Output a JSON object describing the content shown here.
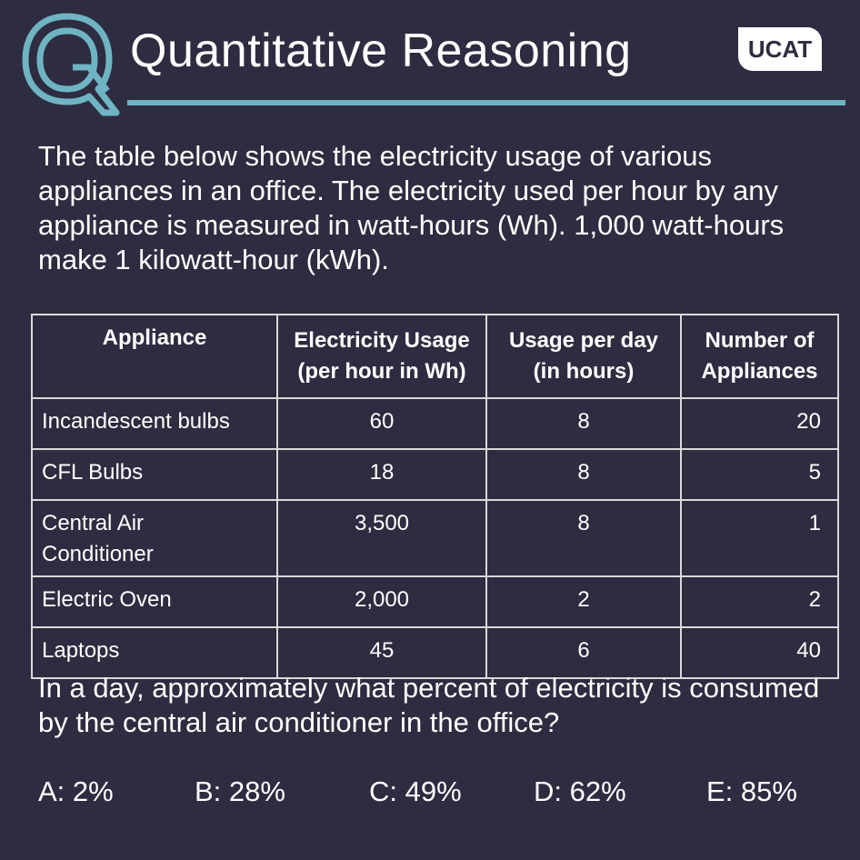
{
  "header": {
    "title": "Quantitative Reasoning",
    "badge": "UCAT",
    "colors": {
      "accent": "#6fb4c2",
      "background": "#2e2c40"
    }
  },
  "intro_text": "The table below shows the electricity usage of various appliances in an office. The electricity used per hour by any appliance is measured in  watt-hours (Wh).  1,000 watt-hours make 1 kilowatt-hour (kWh).",
  "table": {
    "headers": {
      "appliance": "Appliance",
      "usage_line1": "Electricity Usage",
      "usage_line2": "(per hour in Wh)",
      "per_day_line1": "Usage per day",
      "per_day_line2": "(in hours)",
      "count_line1": "Number of",
      "count_line2": "Appliances"
    },
    "rows": [
      {
        "appliance": "Incandescent bulbs",
        "usage": "60",
        "hours": "8",
        "count": "20"
      },
      {
        "appliance": "CFL Bulbs",
        "usage": "18",
        "hours": "8",
        "count": "5"
      },
      {
        "appliance_line1": "Central Air",
        "appliance_line2": "Conditioner",
        "usage": "3,500",
        "hours": "8",
        "count": "1"
      },
      {
        "appliance": "Electric Oven",
        "usage": "2,000",
        "hours": "2",
        "count": "2"
      },
      {
        "appliance": "Laptops",
        "usage": "45",
        "hours": "6",
        "count": "40"
      }
    ]
  },
  "question": "In a day, approximately what percent of electricity is consumed by the central air conditioner in the office?",
  "options": [
    "A: 2%",
    "B: 28%",
    "C: 49%",
    "D: 62%",
    "E: 85%"
  ]
}
